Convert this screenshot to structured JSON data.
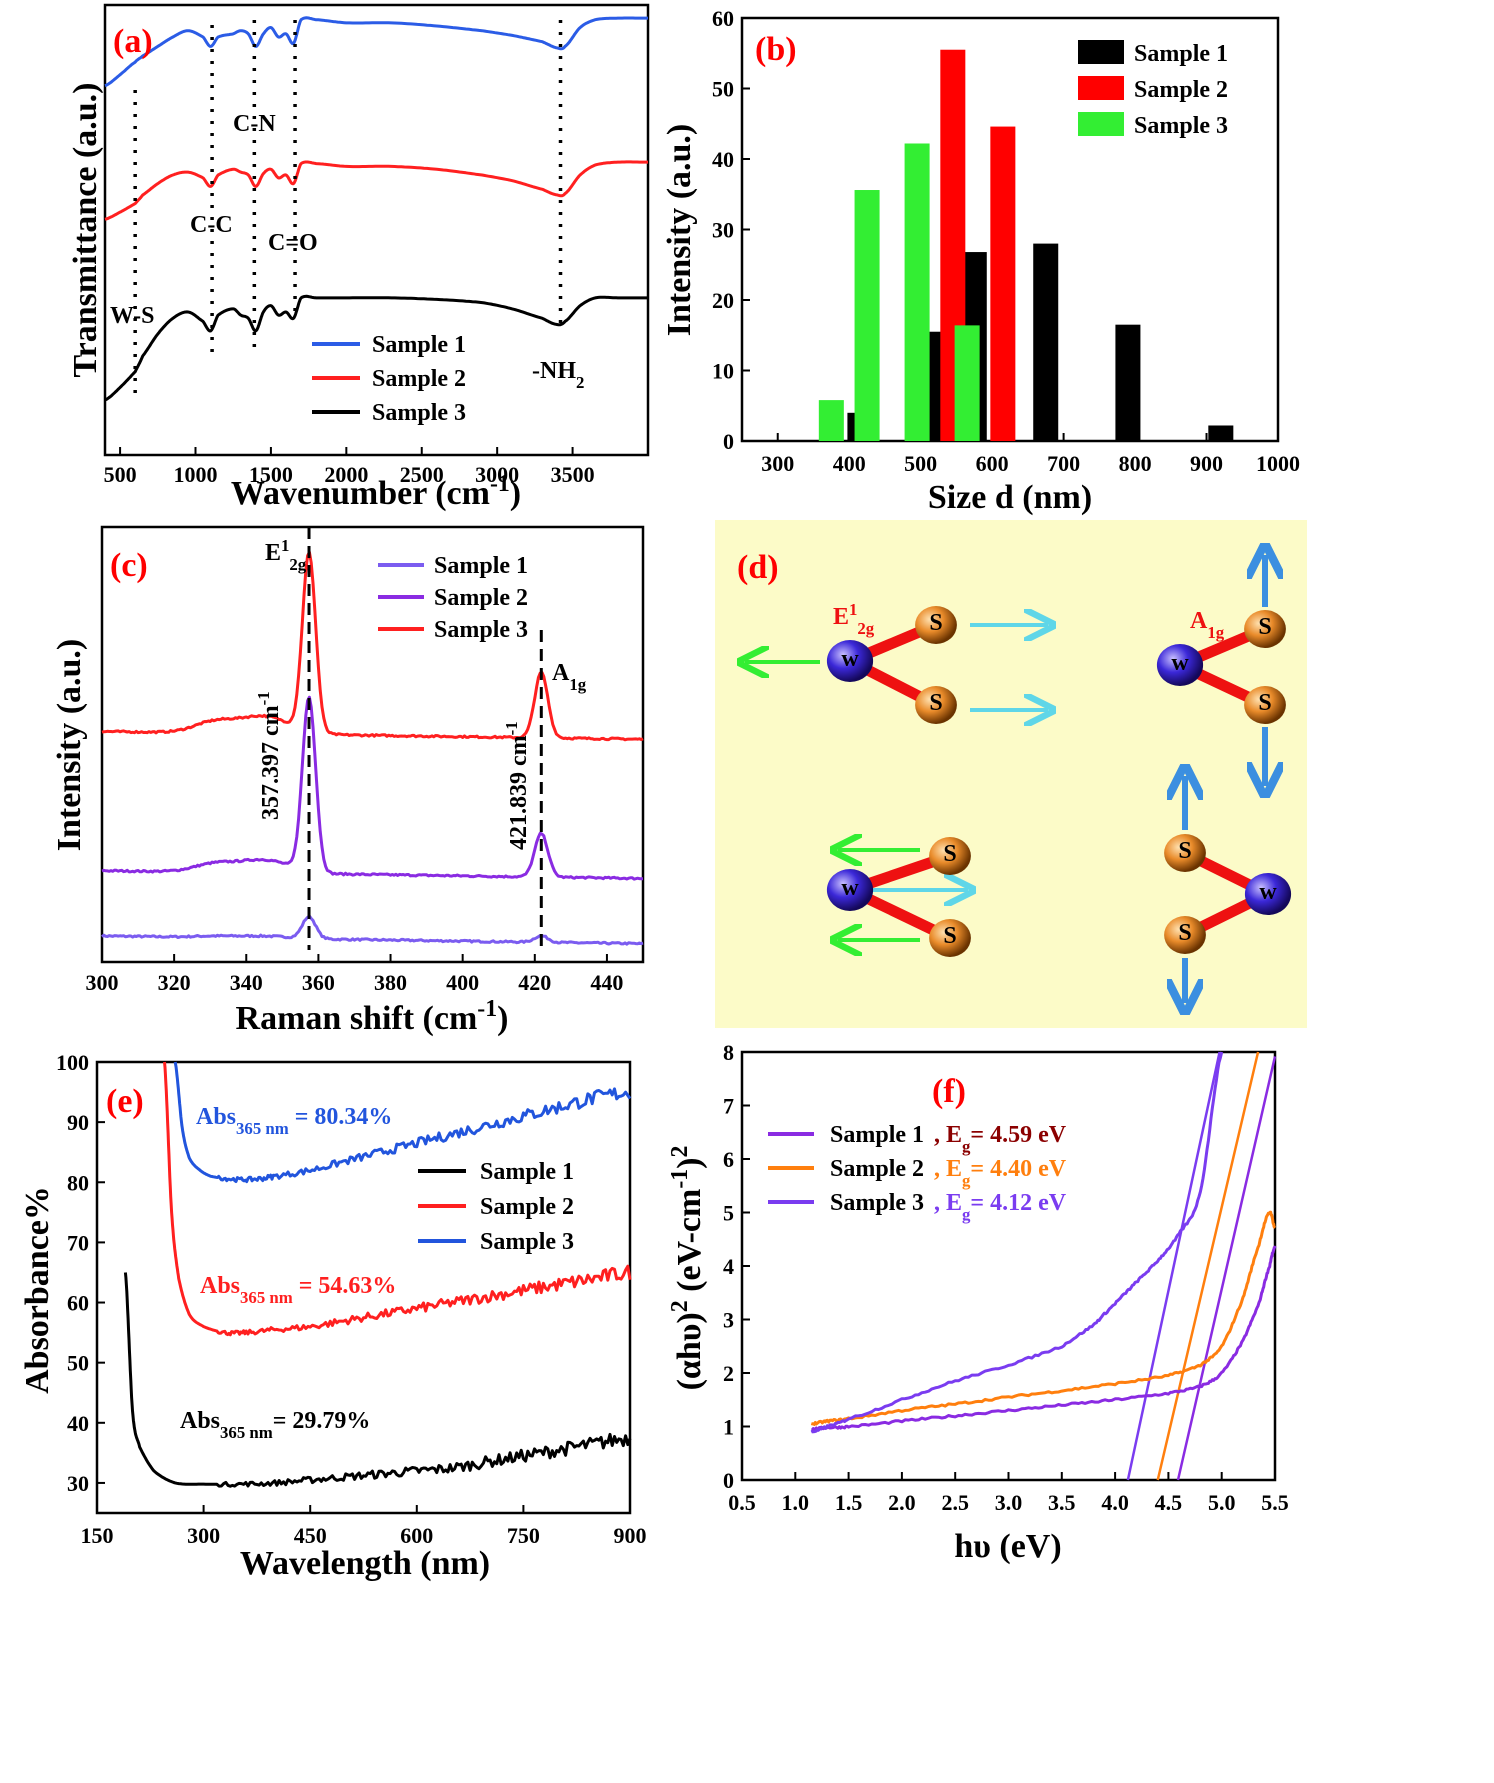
{
  "chart_data": [
    {
      "panel": "(a)",
      "type": "line",
      "xlabel": "Wavenumber (cm",
      "xlabel_sup": "-1",
      "xlabel_end": ")",
      "ylabel": "Transmittance (a.u.)",
      "xlim": [
        400,
        4000
      ],
      "xticks": [
        "500",
        "1000",
        "1500",
        "2000",
        "2500",
        "3000",
        "3500"
      ],
      "series": [
        {
          "name": "Sample 1",
          "color": "#2b5ce6",
          "offset": 0.0,
          "x": [
            400,
            500,
            600,
            650,
            750,
            850,
            950,
            1050,
            1100,
            1150,
            1250,
            1300,
            1350,
            1400,
            1450,
            1500,
            1550,
            1600,
            1650,
            1700,
            1800,
            2000,
            2300,
            2600,
            2900,
            3100,
            3300,
            3400,
            3450,
            3550,
            3650,
            3800,
            4000
          ],
          "y": [
            0.55,
            0.62,
            0.7,
            0.74,
            0.8,
            0.86,
            0.9,
            0.86,
            0.8,
            0.86,
            0.88,
            0.9,
            0.88,
            0.8,
            0.88,
            0.92,
            0.86,
            0.88,
            0.82,
            0.97,
            0.97,
            0.95,
            0.95,
            0.93,
            0.9,
            0.87,
            0.83,
            0.79,
            0.8,
            0.92,
            0.97,
            0.98,
            0.98
          ]
        },
        {
          "name": "Sample 2",
          "color": "#ff2020",
          "offset": 0.0,
          "x": [
            400,
            500,
            600,
            650,
            750,
            850,
            950,
            1050,
            1100,
            1150,
            1250,
            1300,
            1350,
            1400,
            1450,
            1500,
            1550,
            1600,
            1650,
            1700,
            1800,
            2000,
            2300,
            2600,
            2900,
            3100,
            3300,
            3400,
            3450,
            3550,
            3650,
            3800,
            4000
          ],
          "y": [
            0.55,
            0.6,
            0.66,
            0.72,
            0.8,
            0.86,
            0.88,
            0.84,
            0.78,
            0.86,
            0.9,
            0.88,
            0.86,
            0.78,
            0.87,
            0.9,
            0.84,
            0.86,
            0.8,
            0.94,
            0.94,
            0.92,
            0.92,
            0.9,
            0.86,
            0.82,
            0.76,
            0.72,
            0.73,
            0.86,
            0.93,
            0.95,
            0.95
          ]
        },
        {
          "name": "Sample 3",
          "color": "#000000",
          "offset": 0.0,
          "x": [
            400,
            500,
            600,
            650,
            750,
            850,
            950,
            1050,
            1100,
            1150,
            1250,
            1300,
            1350,
            1400,
            1450,
            1500,
            1550,
            1600,
            1650,
            1700,
            1800,
            2000,
            2300,
            2600,
            2900,
            3100,
            3300,
            3400,
            3450,
            3550,
            3650,
            3800,
            4000
          ],
          "y": [
            0.3,
            0.38,
            0.48,
            0.58,
            0.72,
            0.82,
            0.86,
            0.8,
            0.74,
            0.84,
            0.88,
            0.84,
            0.82,
            0.74,
            0.86,
            0.9,
            0.84,
            0.86,
            0.82,
            0.95,
            0.95,
            0.95,
            0.95,
            0.94,
            0.92,
            0.88,
            0.82,
            0.78,
            0.8,
            0.9,
            0.95,
            0.95,
            0.95
          ]
        }
      ],
      "annotations": [
        "C-N",
        "C-C",
        "C=O",
        "W-S",
        "-NH"
      ],
      "annotation_sub": "2"
    },
    {
      "panel": "(b)",
      "type": "bar",
      "xlabel": "Size d (nm)",
      "ylabel": "Intensity (a.u.)",
      "xlim": [
        250,
        1000
      ],
      "ylim": [
        0,
        60
      ],
      "xticks": [
        "300",
        "400",
        "500",
        "600",
        "700",
        "800",
        "900",
        "1000"
      ],
      "yticks": [
        "0",
        "10",
        "20",
        "30",
        "40",
        "50",
        "60"
      ],
      "series": [
        {
          "name": "Sample 1",
          "color": "#000000",
          "x": [
            415,
            525,
            575,
            675,
            790,
            920
          ],
          "values": [
            4,
            15.5,
            26.8,
            28,
            16.5,
            2.2
          ]
        },
        {
          "name": "Sample 2",
          "color": "#ff0000",
          "x": [
            545,
            615
          ],
          "values": [
            55.5,
            44.6
          ]
        },
        {
          "name": "Sample 3",
          "color": "#33ee33",
          "x": [
            375,
            425,
            495,
            565
          ],
          "values": [
            5.8,
            35.6,
            42.2,
            16.4
          ]
        }
      ]
    },
    {
      "panel": "(c)",
      "type": "line",
      "xlabel": "Raman shift (cm",
      "xlabel_sup": "-1",
      "xlabel_end": ")",
      "ylabel": "Intensity (a.u.)",
      "xlim": [
        300,
        450
      ],
      "xticks": [
        "300",
        "320",
        "340",
        "360",
        "380",
        "400",
        "420",
        "440"
      ],
      "series": [
        {
          "name": "Sample 1",
          "color": "#7b5cf0",
          "base": 0.06,
          "p1": 0.05,
          "p2": 0.015,
          "shoulder": 0.005
        },
        {
          "name": "Sample 2",
          "color": "#8a2be2",
          "base": 0.21,
          "p1": 0.4,
          "p2": 0.1,
          "shoulder": 0.03
        },
        {
          "name": "Sample 3",
          "color": "#ff2020",
          "base": 0.53,
          "p1": 0.41,
          "p2": 0.15,
          "shoulder": 0.04
        }
      ],
      "peak1": "357.397 cm",
      "peak1_sup": "-1",
      "peak2": "421.839 cm",
      "peak2_sup": "-1",
      "mode1": "E",
      "mode1_sup": "1",
      "mode1_sub": "2g",
      "mode2": "A",
      "mode2_sub": "1g"
    },
    {
      "panel": "(d)",
      "type": "diagram",
      "atom_w": "W",
      "atom_s": "S",
      "mode1": "E",
      "mode1_sup": "1",
      "mode1_sub": "2g",
      "mode2": "A",
      "mode2_sub": "1g"
    },
    {
      "panel": "(e)",
      "type": "line",
      "xlabel": "Wavelength (nm)",
      "ylabel": "Absorbance%",
      "xlim": [
        150,
        900
      ],
      "ylim": [
        25,
        100
      ],
      "xticks": [
        "150",
        "300",
        "450",
        "600",
        "750",
        "900"
      ],
      "yticks": [
        "30",
        "40",
        "50",
        "60",
        "70",
        "80",
        "90",
        "100"
      ],
      "series": [
        {
          "name": "Sample 1",
          "color": "#000000",
          "x": [
            190,
            200,
            210,
            230,
            260,
            300,
            350,
            400,
            450,
            500,
            550,
            600,
            650,
            700,
            750,
            800,
            850,
            900
          ],
          "y": [
            65,
            42,
            36,
            32,
            30,
            29.8,
            29.8,
            30,
            30.5,
            31,
            31.5,
            32,
            32.5,
            33.5,
            34.5,
            35.5,
            36.5,
            37.5
          ]
        },
        {
          "name": "Sample 2",
          "color": "#ff2020",
          "x": [
            245,
            255,
            265,
            280,
            300,
            330,
            360,
            400,
            450,
            500,
            550,
            600,
            650,
            700,
            750,
            800,
            850,
            900
          ],
          "y": [
            100,
            75,
            64,
            58,
            56,
            55,
            55,
            55.5,
            56,
            57,
            58,
            59,
            60,
            61,
            62,
            63,
            64,
            65
          ]
        },
        {
          "name": "Sample 3",
          "color": "#2255dd",
          "x": [
            260,
            270,
            280,
            295,
            310,
            340,
            370,
            400,
            450,
            500,
            550,
            600,
            650,
            700,
            750,
            800,
            850,
            900
          ],
          "y": [
            100,
            89,
            84,
            82,
            81,
            80.5,
            80.5,
            81,
            82,
            83.5,
            85,
            86.5,
            88,
            89.5,
            91,
            92.5,
            94,
            95
          ]
        }
      ],
      "annotations": [
        {
          "pre": "Abs",
          "sub": "365 nm",
          "post": " = 80.34%",
          "color": "#2255dd"
        },
        {
          "pre": "Abs",
          "sub": "365 nm",
          "post": " = 54.63%",
          "color": "#ff2020"
        },
        {
          "pre": "Abs",
          "sub": "365 nm",
          "post": "= 29.79%",
          "color": "#000000"
        }
      ]
    },
    {
      "panel": "(f)",
      "type": "line",
      "xlabel": "hυ (eV)",
      "ylabel": "(αhυ)",
      "ylabel_sup": "2",
      "ylabel_mid": " (eV-cm",
      "ylabel_sup2": "-1",
      "ylabel_end": ")",
      "ylabel_sup3": "2",
      "xlim": [
        0.5,
        5.5
      ],
      "ylim": [
        0,
        8
      ],
      "xticks": [
        "0.5",
        "1.0",
        "1.5",
        "2.0",
        "2.5",
        "3.0",
        "3.5",
        "4.0",
        "4.5",
        "5.0",
        "5.5"
      ],
      "yticks": [
        "0",
        "1",
        "2",
        "3",
        "4",
        "5",
        "6",
        "7",
        "8"
      ],
      "series": [
        {
          "name": "Sample 1",
          "color": "#8a2be2",
          "eg_color": "#8b0000",
          "eg_label": ", E",
          "eg_sub": "g",
          "eg_value": "= 4.59 eV",
          "eg": 4.59,
          "x": [
            1.15,
            1.3,
            1.5,
            2.0,
            2.5,
            3.0,
            3.5,
            4.0,
            4.5,
            4.8,
            5.0,
            5.2,
            5.35,
            5.45,
            5.5
          ],
          "y": [
            0.95,
            0.98,
            1.0,
            1.1,
            1.2,
            1.3,
            1.4,
            1.5,
            1.62,
            1.75,
            2.0,
            2.6,
            3.3,
            4.0,
            4.35
          ]
        },
        {
          "name": "Sample 2",
          "color": "#ff7f0e",
          "eg_color": "#ff7f0e",
          "eg_label": ", E",
          "eg_sub": "g",
          "eg_value": "= 4.40 eV",
          "eg": 4.4,
          "x": [
            1.15,
            1.3,
            1.5,
            2.0,
            2.5,
            3.0,
            3.5,
            4.0,
            4.5,
            4.8,
            5.0,
            5.2,
            5.35,
            5.45,
            5.5
          ],
          "y": [
            1.05,
            1.1,
            1.15,
            1.3,
            1.42,
            1.55,
            1.67,
            1.8,
            1.95,
            2.15,
            2.5,
            3.4,
            4.4,
            5.0,
            4.7
          ]
        },
        {
          "name": "Sample 3",
          "color": "#7a3cf0",
          "eg_color": "#7a3cf0",
          "eg_label": ", E",
          "eg_sub": "g",
          "eg_value": "= 4.12 eV",
          "eg": 4.12,
          "x": [
            1.15,
            1.3,
            1.5,
            2.0,
            2.5,
            3.0,
            3.5,
            3.8,
            4.0,
            4.2,
            4.4,
            4.6,
            4.8,
            5.0
          ],
          "y": [
            0.9,
            1.0,
            1.15,
            1.5,
            1.85,
            2.15,
            2.5,
            2.9,
            3.3,
            3.7,
            4.1,
            4.6,
            5.4,
            8.0
          ]
        }
      ]
    }
  ]
}
